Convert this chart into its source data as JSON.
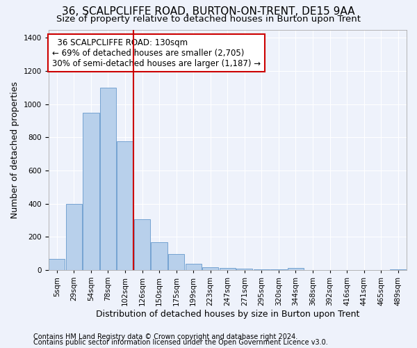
{
  "title": "36, SCALPCLIFFE ROAD, BURTON-ON-TRENT, DE15 9AA",
  "subtitle": "Size of property relative to detached houses in Burton upon Trent",
  "xlabel": "Distribution of detached houses by size in Burton upon Trent",
  "ylabel": "Number of detached properties",
  "footnote1": "Contains HM Land Registry data © Crown copyright and database right 2024.",
  "footnote2": "Contains public sector information licensed under the Open Government Licence v3.0.",
  "annotation_line1": "  36 SCALPCLIFFE ROAD: 130sqm  ",
  "annotation_line2": "← 69% of detached houses are smaller (2,705)",
  "annotation_line3": "30% of semi-detached houses are larger (1,187) →",
  "bar_color": "#b8d0eb",
  "bar_edge_color": "#6699cc",
  "vline_color": "#cc0000",
  "vline_bar_index": 4,
  "categories": [
    "5sqm",
    "29sqm",
    "54sqm",
    "78sqm",
    "102sqm",
    "126sqm",
    "150sqm",
    "175sqm",
    "199sqm",
    "223sqm",
    "247sqm",
    "271sqm",
    "295sqm",
    "320sqm",
    "344sqm",
    "368sqm",
    "392sqm",
    "416sqm",
    "441sqm",
    "465sqm",
    "489sqm"
  ],
  "bar_heights": [
    65,
    400,
    950,
    1100,
    775,
    305,
    165,
    95,
    35,
    18,
    12,
    8,
    5,
    3,
    10,
    0,
    0,
    0,
    0,
    0,
    5
  ],
  "ylim": [
    0,
    1450
  ],
  "yticks": [
    0,
    200,
    400,
    600,
    800,
    1000,
    1200,
    1400
  ],
  "background_color": "#eef2fb",
  "grid_color": "#ffffff",
  "title_fontsize": 11,
  "subtitle_fontsize": 9.5,
  "xlabel_fontsize": 9,
  "ylabel_fontsize": 9,
  "tick_fontsize": 7.5,
  "footnote_fontsize": 7,
  "annotation_fontsize": 8.5
}
